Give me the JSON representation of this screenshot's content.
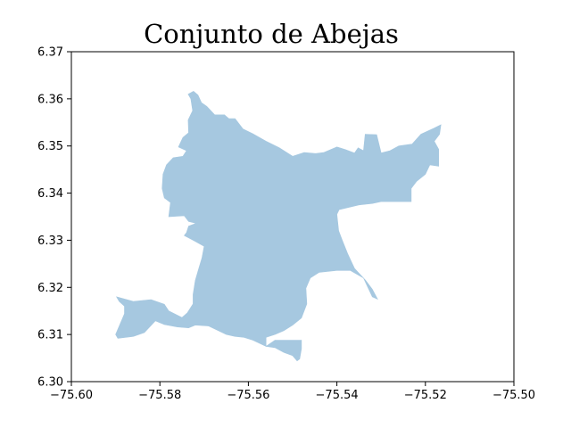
{
  "chart_data": {
    "type": "map",
    "title": "Conjunto de Abejas",
    "xlabel": "",
    "ylabel": "",
    "xlim": [
      -75.6,
      -75.5
    ],
    "ylim": [
      6.3,
      6.37
    ],
    "x_ticks": [
      -75.6,
      -75.58,
      -75.56,
      -75.54,
      -75.52,
      -75.5
    ],
    "x_tick_labels": [
      "−75.60",
      "−75.58",
      "−75.56",
      "−75.54",
      "−75.52",
      "−75.50"
    ],
    "y_ticks": [
      6.3,
      6.31,
      6.32,
      6.33,
      6.34,
      6.35,
      6.36,
      6.37
    ],
    "y_tick_labels": [
      "6.30",
      "6.31",
      "6.32",
      "6.33",
      "6.34",
      "6.35",
      "6.36",
      "6.37"
    ],
    "grid": false,
    "fill_color": "#a6c8e0",
    "region": {
      "name": "",
      "outline": [
        [
          -75.5736,
          6.361
        ],
        [
          -75.5724,
          6.3616
        ],
        [
          -75.5714,
          6.3608
        ],
        [
          -75.5706,
          6.3592
        ],
        [
          -75.5694,
          6.3584
        ],
        [
          -75.5676,
          6.3566
        ],
        [
          -75.5654,
          6.3566
        ],
        [
          -75.5644,
          6.3558
        ],
        [
          -75.563,
          6.3558
        ],
        [
          -75.5612,
          6.3536
        ],
        [
          -75.559,
          6.3526
        ],
        [
          -75.556,
          6.351
        ],
        [
          -75.553,
          6.3496
        ],
        [
          -75.55,
          6.3478
        ],
        [
          -75.5474,
          6.3486
        ],
        [
          -75.5448,
          6.3484
        ],
        [
          -75.543,
          6.3486
        ],
        [
          -75.54,
          6.3498
        ],
        [
          -75.538,
          6.3492
        ],
        [
          -75.536,
          6.3485
        ],
        [
          -75.5352,
          6.3496
        ],
        [
          -75.534,
          6.349
        ],
        [
          -75.5336,
          6.3525
        ],
        [
          -75.531,
          6.3524
        ],
        [
          -75.53,
          6.3485
        ],
        [
          -75.528,
          6.349
        ],
        [
          -75.526,
          6.35
        ],
        [
          -75.523,
          6.3504
        ],
        [
          -75.521,
          6.3525
        ],
        [
          -75.518,
          6.3538
        ],
        [
          -75.5165,
          6.3545
        ],
        [
          -75.5168,
          6.3525
        ],
        [
          -75.518,
          6.351
        ],
        [
          -75.517,
          6.3493
        ],
        [
          -75.517,
          6.3457
        ],
        [
          -75.519,
          6.346
        ],
        [
          -75.52,
          6.344
        ],
        [
          -75.522,
          6.3425
        ],
        [
          -75.5232,
          6.341
        ],
        [
          -75.5232,
          6.3382
        ],
        [
          -75.53,
          6.3382
        ],
        [
          -75.532,
          6.3378
        ],
        [
          -75.535,
          6.3375
        ],
        [
          -75.5395,
          6.3365
        ],
        [
          -75.54,
          6.3355
        ],
        [
          -75.5396,
          6.332
        ],
        [
          -75.5388,
          6.33
        ],
        [
          -75.5375,
          6.327
        ],
        [
          -75.536,
          6.324
        ],
        [
          -75.5335,
          6.3215
        ],
        [
          -75.532,
          6.3196
        ],
        [
          -75.5308,
          6.3175
        ],
        [
          -75.532,
          6.318
        ],
        [
          -75.534,
          6.322
        ],
        [
          -75.537,
          6.3236
        ],
        [
          -75.54,
          6.3236
        ],
        [
          -75.544,
          6.3232
        ],
        [
          -75.546,
          6.322
        ],
        [
          -75.547,
          6.3198
        ],
        [
          -75.5468,
          6.3165
        ],
        [
          -75.548,
          6.3135
        ],
        [
          -75.55,
          6.312
        ],
        [
          -75.552,
          6.3108
        ],
        [
          -75.554,
          6.31
        ],
        [
          -75.556,
          6.3094
        ],
        [
          -75.556,
          6.3075
        ],
        [
          -75.554,
          6.3088
        ],
        [
          -75.548,
          6.3088
        ],
        [
          -75.548,
          6.307
        ],
        [
          -75.5484,
          6.3048
        ],
        [
          -75.549,
          6.3044
        ],
        [
          -75.55,
          6.3055
        ],
        [
          -75.552,
          6.3062
        ],
        [
          -75.554,
          6.3072
        ],
        [
          -75.556,
          6.3075
        ],
        [
          -75.559,
          6.3088
        ],
        [
          -75.561,
          6.3094
        ],
        [
          -75.563,
          6.3096
        ],
        [
          -75.565,
          6.31
        ],
        [
          -75.569,
          6.3118
        ],
        [
          -75.572,
          6.312
        ],
        [
          -75.5735,
          6.3114
        ],
        [
          -75.576,
          6.3116
        ],
        [
          -75.579,
          6.3121
        ],
        [
          -75.581,
          6.3129
        ],
        [
          -75.5835,
          6.3104
        ],
        [
          -75.586,
          6.3096
        ],
        [
          -75.5895,
          6.3092
        ],
        [
          -75.59,
          6.31
        ],
        [
          -75.588,
          6.3144
        ],
        [
          -75.588,
          6.316
        ],
        [
          -75.5892,
          6.317
        ],
        [
          -75.5898,
          6.318
        ],
        [
          -75.586,
          6.317
        ],
        [
          -75.582,
          6.3174
        ],
        [
          -75.579,
          6.3164
        ],
        [
          -75.578,
          6.315
        ],
        [
          -75.575,
          6.3136
        ],
        [
          -75.5738,
          6.3146
        ],
        [
          -75.5725,
          6.3165
        ],
        [
          -75.5725,
          6.3185
        ],
        [
          -75.572,
          6.3215
        ],
        [
          -75.5712,
          6.324
        ],
        [
          -75.5705,
          6.3262
        ],
        [
          -75.57,
          6.3287
        ],
        [
          -75.5725,
          6.33
        ],
        [
          -75.5745,
          6.331
        ],
        [
          -75.574,
          6.3316
        ],
        [
          -75.5735,
          6.333
        ],
        [
          -75.5718,
          6.3336
        ],
        [
          -75.5735,
          6.334
        ],
        [
          -75.5745,
          6.3352
        ],
        [
          -75.578,
          6.335
        ],
        [
          -75.5776,
          6.338
        ],
        [
          -75.579,
          6.339
        ],
        [
          -75.5795,
          6.341
        ],
        [
          -75.5793,
          6.344
        ],
        [
          -75.5785,
          6.346
        ],
        [
          -75.577,
          6.3475
        ],
        [
          -75.5748,
          6.3478
        ],
        [
          -75.574,
          6.349
        ],
        [
          -75.5758,
          6.3498
        ],
        [
          -75.5748,
          6.3518
        ],
        [
          -75.5735,
          6.3528
        ],
        [
          -75.5736,
          6.3555
        ],
        [
          -75.5726,
          6.3575
        ],
        [
          -75.573,
          6.36
        ],
        [
          -75.5736,
          6.361
        ]
      ]
    }
  }
}
